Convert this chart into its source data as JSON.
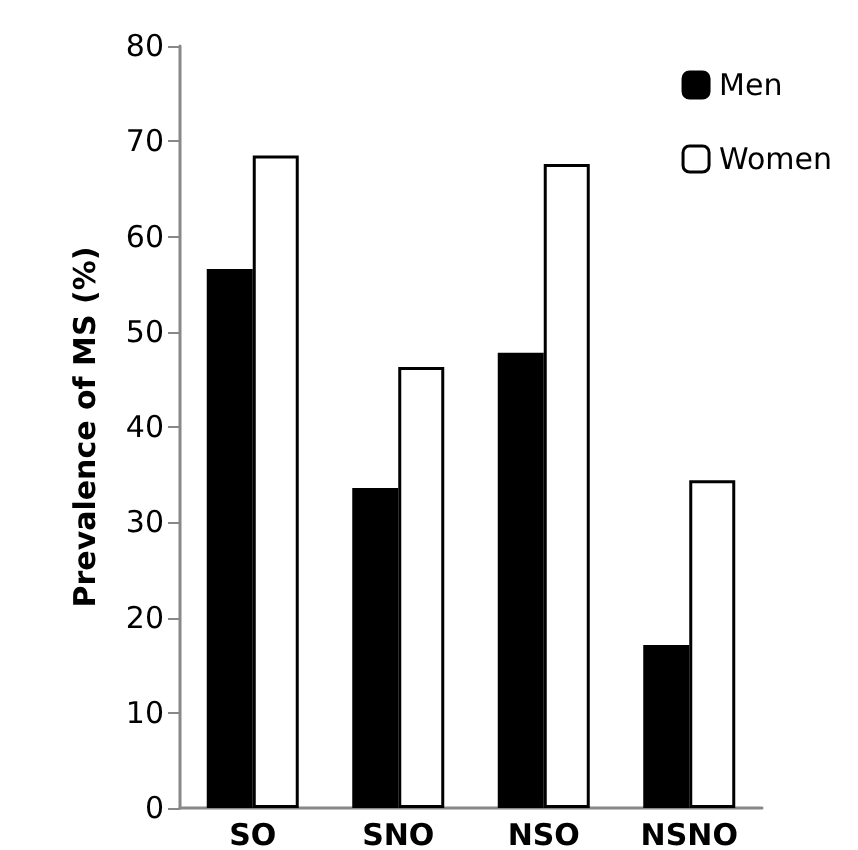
{
  "chart_data": {
    "type": "bar",
    "ylabel": "Prevalence of MS (%)",
    "categories": [
      "SO",
      "SNO",
      "NSO",
      "NSNO"
    ],
    "series": [
      {
        "name": "Men",
        "color": "#000000",
        "values": [
          56.6,
          33.6,
          47.8,
          17.1
        ]
      },
      {
        "name": "Women",
        "color": "#ffffff",
        "values": [
          68.5,
          46.3,
          67.6,
          34.4
        ]
      }
    ],
    "ylim": [
      0,
      80
    ],
    "yticks": [
      0,
      10,
      20,
      30,
      40,
      50,
      60,
      70,
      80
    ],
    "grid": false,
    "legend": "top right"
  }
}
